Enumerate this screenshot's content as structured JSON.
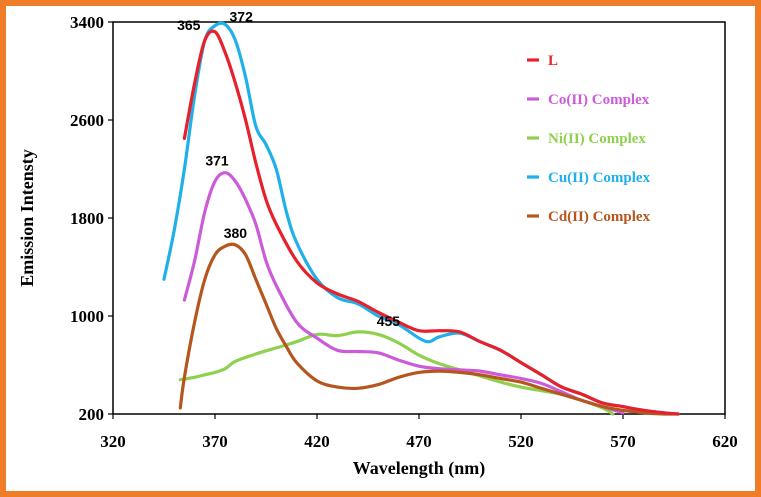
{
  "chart_data": {
    "type": "line",
    "xlabel": "Wavelength (nm)",
    "ylabel": "Emission Intensty",
    "xlim": [
      320,
      620
    ],
    "ylim": [
      200,
      3400
    ],
    "xticks": [
      320,
      370,
      420,
      470,
      520,
      570,
      620
    ],
    "yticks": [
      200,
      1000,
      1800,
      2600,
      3400
    ],
    "legend_position": "top-right",
    "series": [
      {
        "name": "L",
        "color": "#e8202a",
        "x": [
          355,
          360,
          365,
          370,
          375,
          380,
          385,
          390,
          395,
          400,
          410,
          420,
          430,
          440,
          450,
          460,
          470,
          480,
          490,
          500,
          510,
          520,
          530,
          540,
          550,
          560,
          570,
          580,
          590,
          597
        ],
        "y": [
          2450,
          2900,
          3250,
          3320,
          3150,
          2900,
          2600,
          2250,
          1950,
          1750,
          1450,
          1270,
          1180,
          1120,
          1030,
          950,
          880,
          880,
          870,
          790,
          720,
          620,
          520,
          420,
          360,
          290,
          260,
          230,
          210,
          200
        ]
      },
      {
        "name": "Co(II) Complex",
        "color": "#cc5bd9",
        "x": [
          355,
          360,
          365,
          370,
          375,
          380,
          385,
          390,
          395,
          400,
          410,
          420,
          430,
          440,
          450,
          460,
          470,
          480,
          490,
          500,
          510,
          520,
          530,
          540,
          550,
          560,
          570
        ],
        "y": [
          1130,
          1450,
          1850,
          2100,
          2170,
          2100,
          1950,
          1750,
          1450,
          1250,
          950,
          820,
          720,
          710,
          700,
          640,
          590,
          570,
          560,
          550,
          520,
          490,
          450,
          380,
          310,
          260,
          210
        ]
      },
      {
        "name": "Ni(II) Complex",
        "color": "#8fd14f",
        "x": [
          353,
          360,
          365,
          370,
          375,
          380,
          390,
          400,
          410,
          420,
          430,
          440,
          450,
          460,
          470,
          480,
          490,
          500,
          510,
          520,
          530,
          540,
          550,
          560,
          565
        ],
        "y": [
          480,
          500,
          520,
          540,
          570,
          630,
          690,
          740,
          790,
          850,
          840,
          870,
          850,
          780,
          680,
          610,
          560,
          510,
          460,
          420,
          390,
          360,
          310,
          250,
          200
        ]
      },
      {
        "name": "Cu(II) Complex",
        "color": "#1fb0ea",
        "x": [
          345,
          350,
          355,
          360,
          365,
          370,
          375,
          380,
          385,
          390,
          395,
          400,
          405,
          410,
          420,
          430,
          440,
          450,
          460,
          470,
          475,
          480,
          490,
          500,
          510,
          520,
          530,
          540,
          550,
          560,
          570,
          580,
          590,
          597
        ],
        "y": [
          1300,
          1700,
          2200,
          2800,
          3250,
          3370,
          3380,
          3250,
          2950,
          2550,
          2400,
          2200,
          1850,
          1600,
          1300,
          1150,
          1100,
          1000,
          930,
          820,
          790,
          830,
          860,
          790,
          720,
          620,
          520,
          420,
          360,
          290,
          260,
          230,
          210,
          200
        ]
      },
      {
        "name": "Cd(II) Complex",
        "color": "#b5561e",
        "x": [
          353,
          355,
          360,
          365,
          370,
          375,
          380,
          385,
          390,
          395,
          400,
          405,
          410,
          420,
          430,
          440,
          450,
          460,
          470,
          480,
          490,
          500,
          510,
          520,
          530,
          540,
          550,
          560,
          570,
          580,
          590,
          597
        ],
        "y": [
          250,
          500,
          950,
          1300,
          1500,
          1570,
          1580,
          1500,
          1300,
          1100,
          900,
          750,
          620,
          470,
          420,
          410,
          440,
          500,
          540,
          550,
          540,
          520,
          490,
          460,
          410,
          360,
          310,
          260,
          230,
          210,
          200,
          200
        ]
      }
    ],
    "annotations": [
      {
        "text": "365",
        "x": 365,
        "y": 3320
      },
      {
        "text": "372",
        "x": 375,
        "y": 3380
      },
      {
        "text": "371",
        "x": 371,
        "y": 2170
      },
      {
        "text": "380",
        "x": 380,
        "y": 1580
      },
      {
        "text": "455",
        "x": 455,
        "y": 870
      }
    ]
  }
}
